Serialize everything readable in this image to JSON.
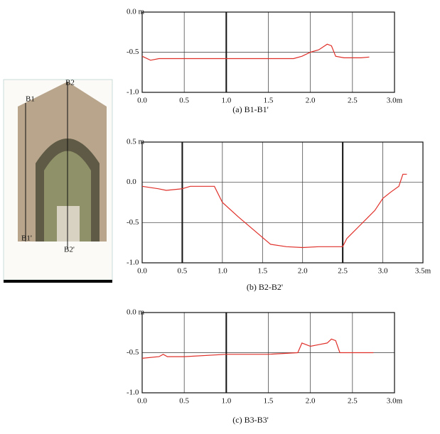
{
  "image_labels": {
    "b1": "B1",
    "b1p": "B1'",
    "b2": "B2",
    "b2p": "B2'"
  },
  "chart_data": [
    {
      "type": "line",
      "caption": "(a)  B1-B1'",
      "color": "#e0302a",
      "grid": true,
      "bold_x": [
        1.0
      ],
      "x": [
        0,
        0.1,
        0.2,
        0.3,
        0.5,
        0.8,
        1.0,
        1.3,
        1.6,
        1.8,
        1.9,
        2.0,
        2.1,
        2.2,
        2.25,
        2.3,
        2.4,
        2.5,
        2.6,
        2.7
      ],
      "values": [
        -0.55,
        -0.6,
        -0.58,
        -0.58,
        -0.58,
        -0.58,
        -0.58,
        -0.58,
        -0.58,
        -0.58,
        -0.55,
        -0.5,
        -0.47,
        -0.4,
        -0.42,
        -0.55,
        -0.57,
        -0.57,
        -0.57,
        -0.56
      ],
      "xlim": [
        0,
        3
      ],
      "xticks": [
        {
          "value": 0,
          "label": "0.0"
        },
        0.5,
        {
          "value": 1,
          "label": "1.0"
        },
        1.5,
        {
          "value": 2,
          "label": "2.0"
        },
        2.5,
        {
          "value": 3,
          "label": "3.0m"
        }
      ],
      "ylim": [
        -1,
        0
      ],
      "yticks": [
        {
          "value": 0,
          "label": "0.0 m"
        },
        -0.5,
        {
          "value": -1,
          "label": "-1.0"
        }
      ]
    },
    {
      "type": "line",
      "caption": "(b)  B2-B2'",
      "color": "#e0302a",
      "grid": true,
      "bold_x": [
        0.5,
        2.5
      ],
      "x": [
        0,
        0.2,
        0.3,
        0.5,
        0.6,
        0.9,
        1.0,
        1.2,
        1.4,
        1.6,
        1.8,
        2.0,
        2.2,
        2.5,
        2.55,
        2.6,
        2.7,
        2.8,
        2.9,
        3.0,
        3.1,
        3.2,
        3.25,
        3.3
      ],
      "values": [
        -0.05,
        -0.08,
        -0.1,
        -0.08,
        -0.05,
        -0.05,
        -0.25,
        -0.43,
        -0.6,
        -0.77,
        -0.8,
        -0.81,
        -0.8,
        -0.8,
        -0.7,
        -0.65,
        -0.55,
        -0.45,
        -0.35,
        -0.2,
        -0.12,
        -0.05,
        0.1,
        0.1
      ],
      "xlim": [
        0,
        3.5
      ],
      "xticks": [
        {
          "value": 0,
          "label": "0.0"
        },
        0.5,
        {
          "value": 1,
          "label": "1.0"
        },
        1.5,
        {
          "value": 2,
          "label": "2.0"
        },
        2.5,
        {
          "value": 3,
          "label": "3.0"
        },
        {
          "value": 3.5,
          "label": "3.5m"
        }
      ],
      "ylim": [
        -1,
        0.5
      ],
      "yticks": [
        {
          "value": 0.5,
          "label": "0.5 m"
        },
        {
          "value": 0,
          "label": "0.0"
        },
        -0.5,
        {
          "value": -1,
          "label": "-1.0"
        }
      ]
    },
    {
      "type": "line",
      "caption": "(c)  B3-B3'",
      "color": "#e0302a",
      "grid": true,
      "bold_x": [
        1.0
      ],
      "x": [
        0,
        0.2,
        0.25,
        0.3,
        0.5,
        1.0,
        1.5,
        1.85,
        1.9,
        2.0,
        2.1,
        2.2,
        2.25,
        2.3,
        2.35,
        2.5,
        2.75
      ],
      "values": [
        -0.57,
        -0.55,
        -0.52,
        -0.55,
        -0.55,
        -0.52,
        -0.52,
        -0.5,
        -0.38,
        -0.42,
        -0.4,
        -0.38,
        -0.33,
        -0.35,
        -0.5,
        -0.5,
        -0.5
      ],
      "xlim": [
        0,
        3
      ],
      "xticks": [
        {
          "value": 0,
          "label": "0.0"
        },
        0.5,
        {
          "value": 1,
          "label": "1.0"
        },
        1.5,
        {
          "value": 2,
          "label": "2.0"
        },
        2.5,
        {
          "value": 3,
          "label": "3.0m"
        }
      ],
      "ylim": [
        -1,
        0
      ],
      "yticks": [
        {
          "value": 0,
          "label": "0.0 m"
        },
        -0.5,
        {
          "value": -1,
          "label": "-1.0"
        }
      ]
    }
  ]
}
